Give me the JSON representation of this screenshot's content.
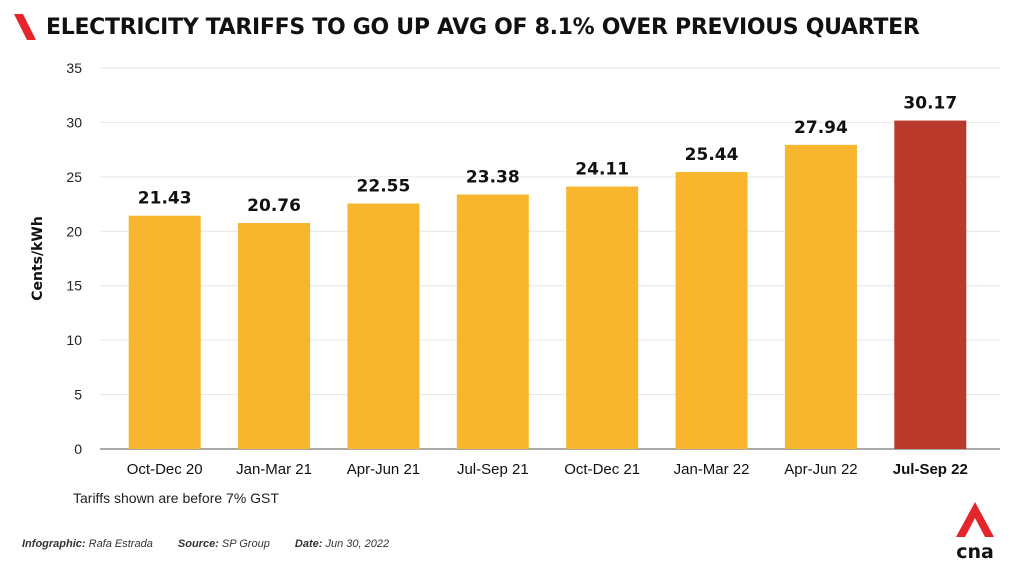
{
  "header": {
    "title": "ELECTRICITY TARIFFS TO GO UP AVG OF 8.1% OVER PREVIOUS QUARTER"
  },
  "chart_data": {
    "type": "bar",
    "title": "ELECTRICITY TARIFFS TO GO UP AVG OF 8.1% OVER PREVIOUS QUARTER",
    "xlabel": "",
    "ylabel": "Cents/kWh",
    "ylim": [
      0,
      35
    ],
    "yticks": [
      0,
      5,
      10,
      15,
      20,
      25,
      30,
      35
    ],
    "grid": true,
    "categories": [
      "Oct-Dec 20",
      "Jan-Mar 21",
      "Apr-Jun 21",
      "Jul-Sep 21",
      "Oct-Dec 21",
      "Jan-Mar 22",
      "Apr-Jun 22",
      "Jul-Sep 22"
    ],
    "values": [
      21.43,
      20.76,
      22.55,
      23.38,
      24.11,
      25.44,
      27.94,
      30.17
    ],
    "value_labels": [
      "21.43",
      "20.76",
      "22.55",
      "23.38",
      "24.11",
      "25.44",
      "27.94",
      "30.17"
    ],
    "highlight_index": 7,
    "colors": {
      "bar": "#F8B52E",
      "highlight": "#B93A2B",
      "grid": "#E6E6E6",
      "brand": "#E4262C"
    }
  },
  "footer": {
    "note": "Tariffs shown are before 7% GST",
    "infographic_label": "Infographic:",
    "infographic_value": "Rafa Estrada",
    "source_label": "Source:",
    "source_value": "SP Group",
    "date_label": "Date:",
    "date_value": "Jun 30, 2022",
    "logo_text": "cna"
  }
}
